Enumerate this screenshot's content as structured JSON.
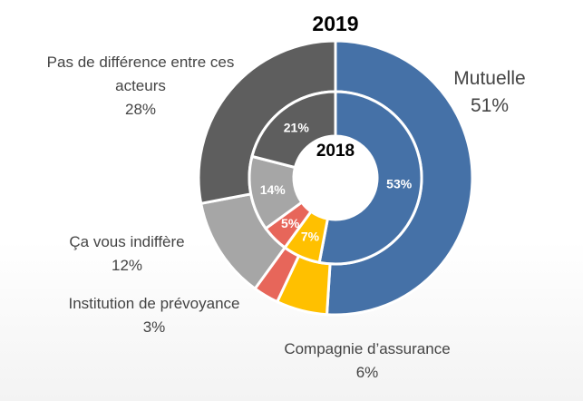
{
  "chart_data": {
    "type": "pie",
    "subtype": "nested-donut",
    "outer_ring": {
      "title": "2019",
      "slices": [
        {
          "label": "Mutuelle",
          "pct_label": "51%",
          "value": 51,
          "color": "#4571a7"
        },
        {
          "label": "Compagnie d’assurance",
          "pct_label": "6%",
          "value": 6,
          "color": "#ffc000"
        },
        {
          "label": "Institution de prévoyance",
          "pct_label": "3%",
          "value": 3,
          "color": "#e7665a"
        },
        {
          "label": "Ça vous indiffère",
          "pct_label": "12%",
          "value": 12,
          "color": "#a6a6a6"
        },
        {
          "label": "Pas de différence entre ces acteurs",
          "pct_label": "28%",
          "value": 28,
          "color": "#5e5e5e"
        }
      ]
    },
    "inner_ring": {
      "title": "2018",
      "slices": [
        {
          "label": "Mutuelle",
          "pct_label": "53%",
          "value": 53,
          "color": "#4571a7"
        },
        {
          "label": "Compagnie d’assurance",
          "pct_label": "7%",
          "value": 7,
          "color": "#ffc000"
        },
        {
          "label": "Institution de prévoyance",
          "pct_label": "5%",
          "value": 5,
          "color": "#e7665a"
        },
        {
          "label": "Ça vous indiffère",
          "pct_label": "14%",
          "value": 14,
          "color": "#a6a6a6"
        },
        {
          "label": "Pas de différence entre ces acteurs",
          "pct_label": "21%",
          "value": 21,
          "color": "#5e5e5e"
        }
      ]
    }
  }
}
